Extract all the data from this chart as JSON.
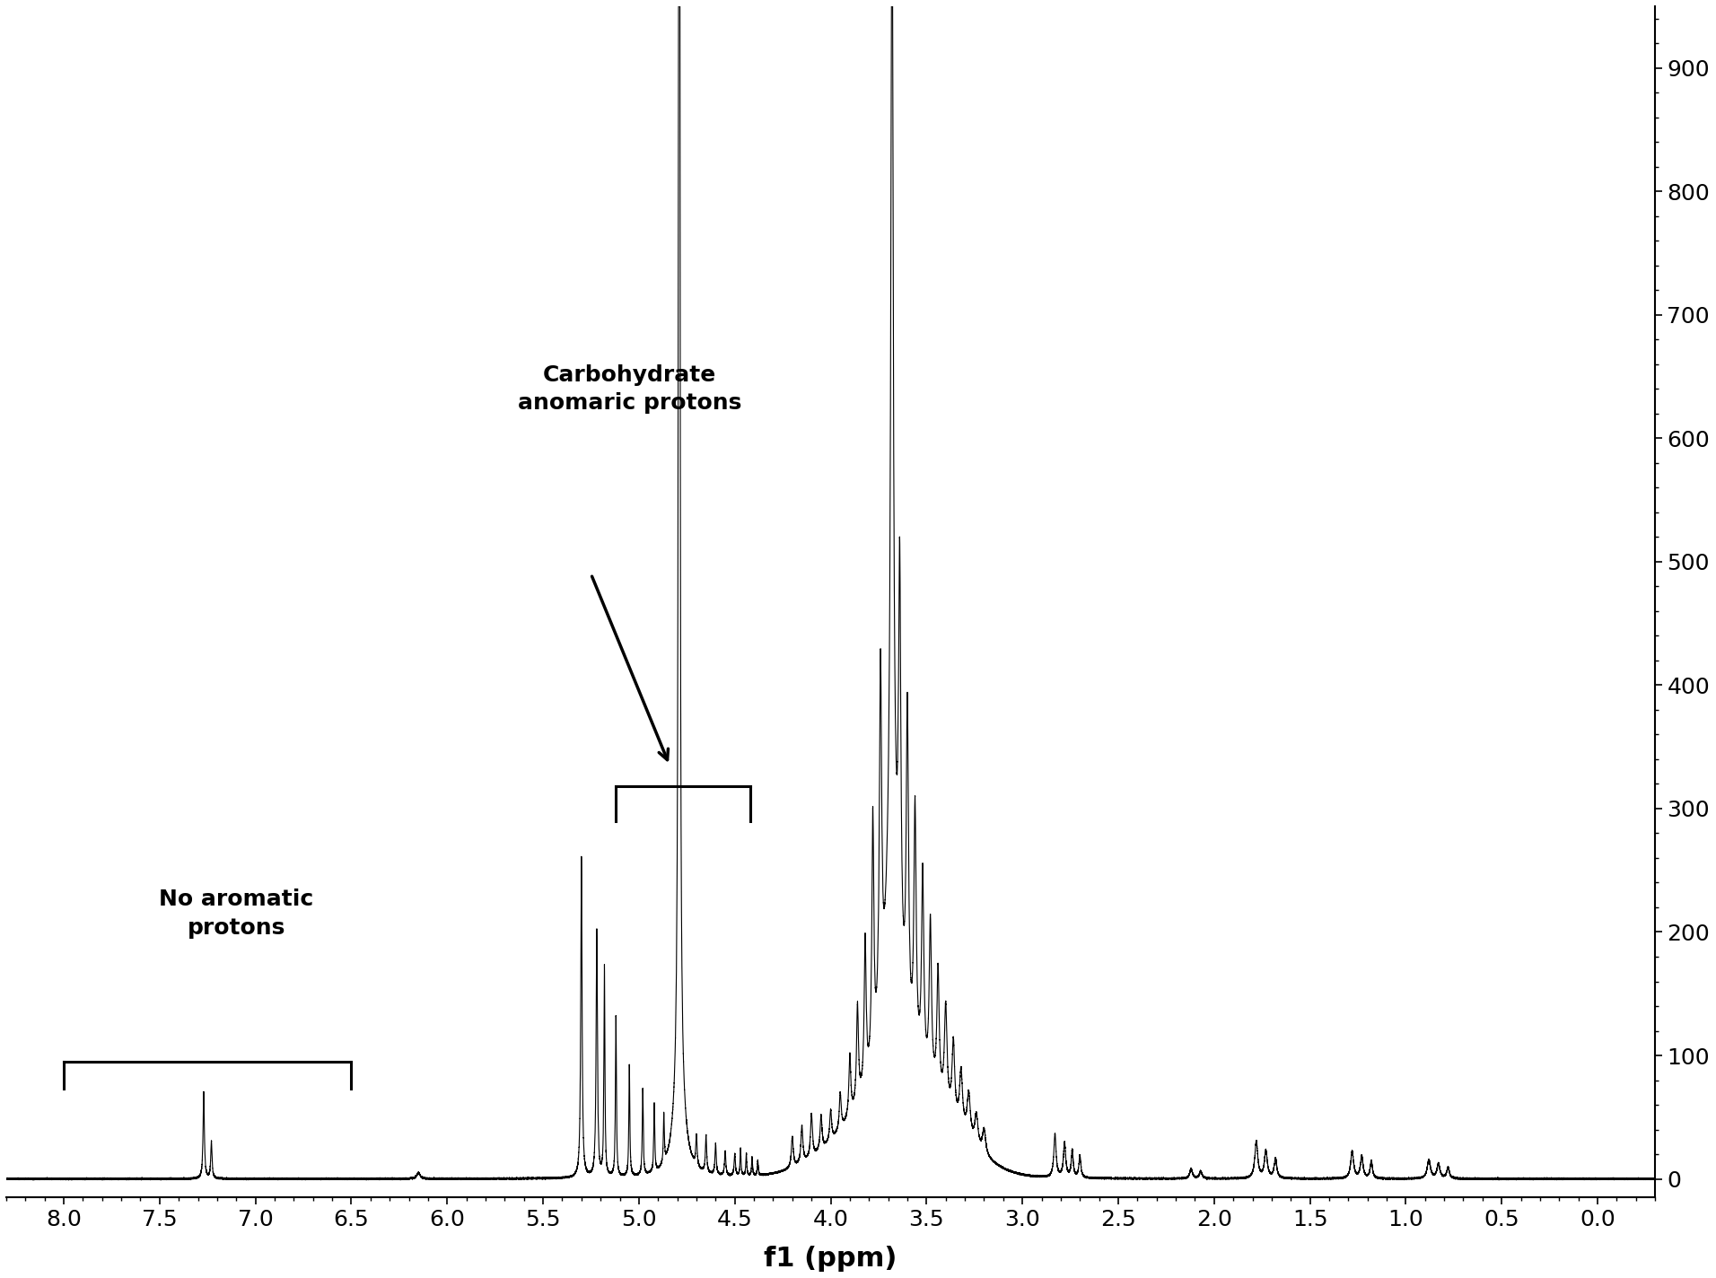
{
  "title": "",
  "xlabel": "f1 (ppm)",
  "ylabel": "",
  "xlim": [
    8.3,
    -0.3
  ],
  "ylim": [
    -15,
    950
  ],
  "yticks": [
    0,
    100,
    200,
    300,
    400,
    500,
    600,
    700,
    800,
    900
  ],
  "xticks": [
    8.0,
    7.5,
    7.0,
    6.5,
    6.0,
    5.5,
    5.0,
    4.5,
    4.0,
    3.5,
    3.0,
    2.5,
    2.0,
    1.5,
    1.0,
    0.5,
    0.0
  ],
  "background_color": "#ffffff",
  "line_color": "#000000",
  "annotation1_text": "Carbohydrate\nanomaric protons",
  "annotation2_text": "No aromatic\nprotons",
  "line_width": 1.0
}
